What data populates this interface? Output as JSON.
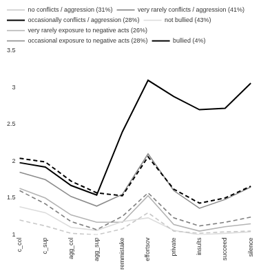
{
  "chart_data": {
    "type": "line",
    "categories": [
      "c_col",
      "c_sup",
      "agg_col",
      "agg_sup",
      "remmistake",
      "effortsov",
      "private",
      "insults",
      "succeed",
      "silence"
    ],
    "ylim": [
      1,
      3.5
    ],
    "yticks": [
      1,
      1.5,
      2,
      2.5,
      3,
      3.5
    ],
    "grid": false,
    "legend": "top",
    "series": [
      {
        "name": "no conflicts / aggression (31%)",
        "color": "#c8c8c8",
        "line_style": "dashed",
        "values": [
          1.2,
          1.12,
          1.02,
          1.0,
          1.08,
          1.3,
          1.05,
          1.02,
          1.04,
          1.05
        ]
      },
      {
        "name": "very rarely conflicts / aggression (41%)",
        "color": "#7f7f7f",
        "line_style": "dashed",
        "values": [
          1.6,
          1.42,
          1.18,
          1.07,
          1.25,
          1.57,
          1.23,
          1.12,
          1.17,
          1.24
        ]
      },
      {
        "name": "occasionally conflicts / aggression (28%)",
        "color": "#000000",
        "line_style": "dashed",
        "values": [
          2.04,
          1.99,
          1.73,
          1.57,
          1.53,
          2.06,
          1.62,
          1.43,
          1.5,
          1.66
        ]
      },
      {
        "name": "not bullied (43%)",
        "color": "#dcdcdc",
        "line_style": "solid",
        "values": [
          1.38,
          1.3,
          1.1,
          1.06,
          1.18,
          1.23,
          1.06,
          1.0,
          1.02,
          1.04
        ]
      },
      {
        "name": "very rarely exposure to negative acts (26%)",
        "color": "#b4b4b4",
        "line_style": "solid",
        "values": [
          1.63,
          1.5,
          1.27,
          1.17,
          1.17,
          1.53,
          1.14,
          1.05,
          1.11,
          1.15
        ]
      },
      {
        "name": "occasional exposure to negative acts (28%)",
        "color": "#8c8c8c",
        "line_style": "solid",
        "values": [
          1.85,
          1.75,
          1.52,
          1.39,
          1.55,
          2.1,
          1.6,
          1.36,
          1.48,
          1.65
        ]
      },
      {
        "name": "bullied (4%)",
        "color": "#000000",
        "line_style": "solid",
        "values": [
          1.98,
          1.92,
          1.67,
          1.54,
          2.4,
          3.1,
          2.88,
          2.7,
          2.72,
          3.06
        ]
      }
    ]
  }
}
